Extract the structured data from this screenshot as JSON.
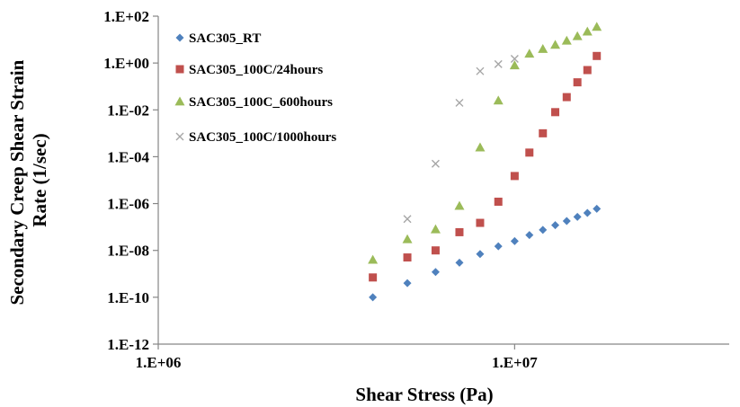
{
  "chart_data": {
    "type": "scatter",
    "title": "",
    "xlabel": "Shear Stress (Pa)",
    "ylabel_lines": [
      "Secondary Creep Shear Strain",
      "Rate (1/sec)"
    ],
    "x_scale": "log",
    "y_scale": "log",
    "xlim": [
      1000000,
      40000000
    ],
    "ylim": [
      1e-12,
      100
    ],
    "x_ticks": [
      {
        "value": 1000000,
        "label": "1.E+06"
      },
      {
        "value": 10000000,
        "label": "1.E+07"
      }
    ],
    "y_ticks": [
      {
        "value": 100,
        "label": "1.E+02"
      },
      {
        "value": 1,
        "label": "1.E+00"
      },
      {
        "value": 0.01,
        "label": "1.E-02"
      },
      {
        "value": 0.0001,
        "label": "1.E-04"
      },
      {
        "value": 1e-06,
        "label": "1.E-06"
      },
      {
        "value": 1e-08,
        "label": "1.E-08"
      },
      {
        "value": 1e-10,
        "label": "1.E-10"
      },
      {
        "value": 1e-12,
        "label": "1.E-12"
      }
    ],
    "grid": false,
    "legend_position": "top-left",
    "series": [
      {
        "name": "SAC305_RT",
        "marker": "diamond",
        "color": "#4F81BD",
        "x": [
          4000000,
          5000000,
          6000000,
          7000000,
          8000000,
          9000000,
          10000000,
          11000000,
          12000000,
          13000000,
          14000000,
          15000000,
          16000000,
          17000000
        ],
        "y": [
          1e-10,
          4e-10,
          1.2e-09,
          3e-09,
          7e-09,
          1.5e-08,
          2.5e-08,
          4.5e-08,
          7.5e-08,
          1.2e-07,
          1.8e-07,
          2.7e-07,
          4e-07,
          6e-07
        ]
      },
      {
        "name": "SAC305_100C/24hours",
        "marker": "square",
        "color": "#C0504D",
        "x": [
          4000000,
          5000000,
          6000000,
          7000000,
          8000000,
          9000000,
          10000000,
          11000000,
          12000000,
          13000000,
          14000000,
          15000000,
          16000000,
          17000000
        ],
        "y": [
          7e-10,
          5e-09,
          1e-08,
          6e-08,
          1.5e-07,
          1.2e-06,
          1.5e-05,
          0.00015,
          0.001,
          0.008,
          0.035,
          0.15,
          0.5,
          2
        ]
      },
      {
        "name": "SAC305_100C_600hours",
        "marker": "triangle",
        "color": "#9BBB59",
        "x": [
          4000000,
          5000000,
          6000000,
          7000000,
          8000000,
          9000000,
          10000000,
          11000000,
          12000000,
          13000000,
          14000000,
          15000000,
          16000000,
          17000000
        ],
        "y": [
          4e-09,
          3e-08,
          8e-08,
          8e-07,
          0.00025,
          0.025,
          0.8,
          2.5,
          4,
          6,
          9,
          14,
          22,
          35
        ]
      },
      {
        "name": "SAC305_100C/1000hours",
        "marker": "x",
        "color": "#A6A6A6",
        "x": [
          5000000,
          6000000,
          7000000,
          8000000,
          9000000,
          10000000
        ],
        "y": [
          2.2e-07,
          5e-05,
          0.02,
          0.45,
          0.9,
          1.5
        ]
      }
    ]
  }
}
